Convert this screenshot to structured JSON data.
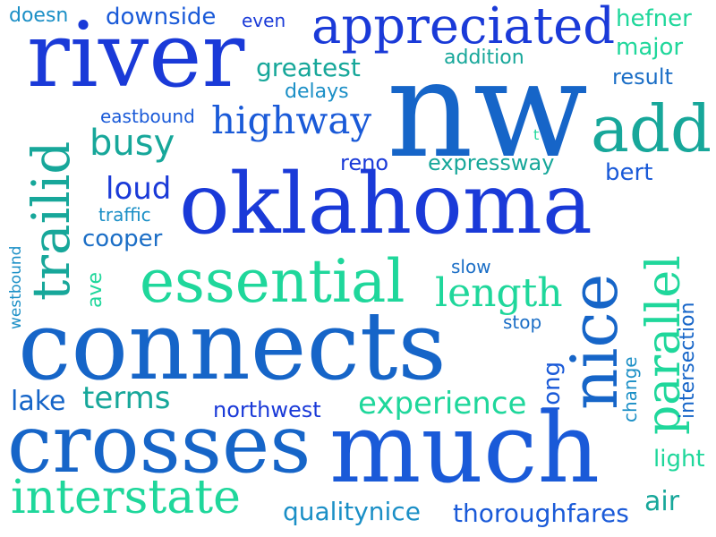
{
  "colors": {
    "blue": "#1a3ad8",
    "mid_blue": "#1665c8",
    "sky": "#1b8fc6",
    "teal": "#17a79a",
    "green": "#1fd79b",
    "mint": "#2ed6a4",
    "background": "#ffffff"
  },
  "words": [
    "doesn",
    "downside",
    "even",
    "appreciated",
    "hefner",
    "major",
    "river",
    "addition",
    "greatest",
    "delays",
    "result",
    "nw",
    "eastbound",
    "highway",
    "add",
    "busy",
    "trailid",
    "t",
    "reno",
    "expressway",
    "bert",
    "loud",
    "traffic",
    "oklahoma",
    "westbound",
    "cooper",
    "essential",
    "slow",
    "ave",
    "length",
    "nice",
    "parallel",
    "intersection",
    "stop",
    "connects",
    "long",
    "change",
    "lake",
    "terms",
    "northwest",
    "experience",
    "crosses",
    "much",
    "light",
    "interstate",
    "air",
    "qualitynice",
    "thoroughfares"
  ]
}
